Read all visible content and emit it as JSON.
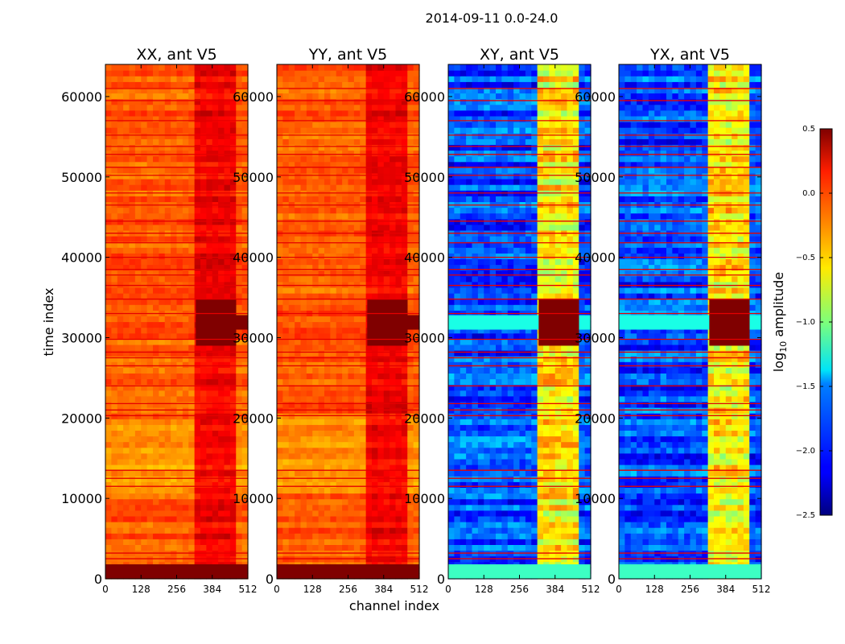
{
  "figure": {
    "suptitle": "2014-09-11 0.0-24.0",
    "xlabel": "channel index",
    "ylabel": "time index"
  },
  "colorbar": {
    "label_main": "log",
    "label_sub": "10",
    "label_tail": " amplitude",
    "range": [
      -2.5,
      0.5
    ],
    "ticks": [
      0.5,
      0.0,
      -0.5,
      -1.0,
      -1.5,
      -2.0,
      -2.5
    ],
    "tick_labels": [
      "0.5",
      "0.0",
      "−0.5",
      "−1.0",
      "−1.5",
      "−2.0",
      "−2.5"
    ],
    "colormap": "jet"
  },
  "chart_data": {
    "type": "heatmap",
    "title": "2014-09-11 0.0-24.0",
    "xlabel": "channel index",
    "ylabel": "time index",
    "xlim": [
      0,
      512
    ],
    "ylim": [
      0,
      64000
    ],
    "x_ticks": [
      0,
      128,
      256,
      384,
      512
    ],
    "x_tick_labels": [
      "0",
      "128",
      "256",
      "384",
      "512"
    ],
    "y_ticks": [
      0,
      10000,
      20000,
      30000,
      40000,
      50000,
      60000
    ],
    "y_tick_labels": [
      "0",
      "10000",
      "20000",
      "30000",
      "40000",
      "50000",
      "60000"
    ],
    "panels": [
      {
        "title": "XX, ant V5",
        "typical_log10_amplitude": -0.15,
        "band_log10_amplitude": 0.15
      },
      {
        "title": "YY, ant V5",
        "typical_log10_amplitude": -0.15,
        "band_log10_amplitude": 0.15
      },
      {
        "title": "XY, ant V5",
        "typical_log10_amplitude": -1.9,
        "band_log10_amplitude": -0.6
      },
      {
        "title": "YX, ant V5",
        "typical_log10_amplitude": -1.9,
        "band_log10_amplitude": -0.6
      }
    ],
    "high_amplitude_channel_range": [
      325,
      470
    ],
    "saturated_time_ranges": [
      [
        0,
        1800
      ],
      [
        31000,
        32800
      ]
    ],
    "flagged_time_rows": [
      2500,
      3200,
      11500,
      12500,
      13500,
      20300,
      21000,
      21800,
      24000,
      26500,
      27500,
      28200,
      29800,
      33000,
      34800,
      36500,
      37800,
      38500,
      40000,
      41800,
      43000,
      44500,
      46500,
      48000,
      50200,
      51200,
      52800,
      53800,
      55200,
      57000,
      59500,
      61000
    ]
  },
  "colors": {
    "background": "#ffffff",
    "axes": "#000000"
  }
}
